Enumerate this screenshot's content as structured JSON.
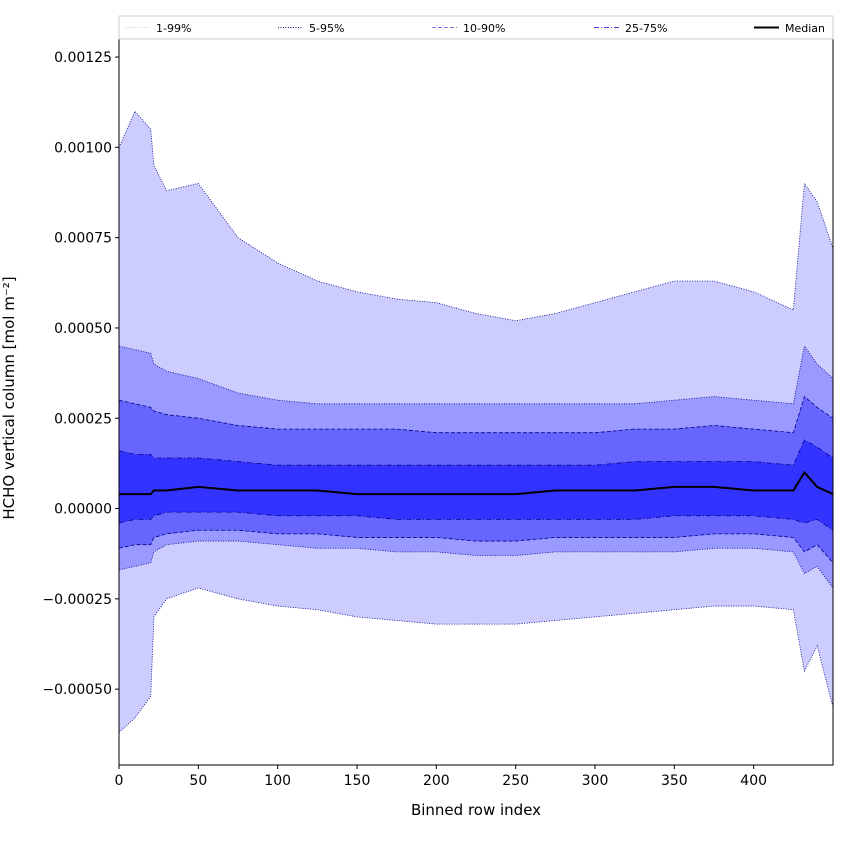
{
  "chart_data": {
    "type": "area",
    "title": "",
    "xlabel": "Binned row index",
    "ylabel": "HCHO vertical column [mol m⁻²]",
    "xlim": [
      0,
      450
    ],
    "ylim": [
      -0.00071,
      0.0013
    ],
    "x_ticks": [
      0,
      50,
      100,
      150,
      200,
      250,
      300,
      350,
      400
    ],
    "x_tick_labels": [
      "0",
      "50",
      "100",
      "150",
      "200",
      "250",
      "300",
      "350",
      "400"
    ],
    "y_ticks": [
      -0.0005,
      -0.00025,
      0.0,
      0.00025,
      0.0005,
      0.00075,
      0.001,
      0.00125
    ],
    "y_tick_labels": [
      "−0.00050",
      "−0.00025",
      "0.00000",
      "0.00025",
      "0.00050",
      "0.00075",
      "0.00100",
      "0.00125"
    ],
    "grid": false,
    "legend_position": "top",
    "colors": {
      "band_1_99": "#ccccff",
      "band_5_95": "#9999ff",
      "band_10_90": "#6666ff",
      "band_25_75": "#3333ff",
      "line": "#00008b",
      "median": "#000000"
    },
    "legend": [
      {
        "label": "1-99%",
        "style": "dotted",
        "color": "#ccccdd"
      },
      {
        "label": "5-95%",
        "style": "dotted",
        "color": "#00008b"
      },
      {
        "label": "10-90%",
        "style": "dashed",
        "color": "#7777ee"
      },
      {
        "label": "25-75%",
        "style": "dashdot",
        "color": "#4444ee"
      },
      {
        "label": "Median",
        "style": "solid",
        "color": "#000000"
      }
    ],
    "x": [
      0,
      10,
      20,
      22,
      30,
      50,
      75,
      100,
      125,
      150,
      175,
      200,
      225,
      250,
      275,
      300,
      325,
      350,
      375,
      400,
      425,
      432,
      440,
      450
    ],
    "series": [
      {
        "name": "1-99%",
        "lower": [
          -0.00062,
          -0.00058,
          -0.00052,
          -0.0003,
          -0.00025,
          -0.00022,
          -0.00025,
          -0.00027,
          -0.00028,
          -0.0003,
          -0.00031,
          -0.00032,
          -0.00032,
          -0.00032,
          -0.00031,
          -0.0003,
          -0.00029,
          -0.00028,
          -0.00027,
          -0.00027,
          -0.00028,
          -0.00045,
          -0.00038,
          -0.00055
        ],
        "upper": [
          0.001,
          0.0011,
          0.00105,
          0.00095,
          0.00088,
          0.0009,
          0.00075,
          0.00068,
          0.00063,
          0.0006,
          0.00058,
          0.00057,
          0.00054,
          0.00052,
          0.00054,
          0.00057,
          0.0006,
          0.00063,
          0.00063,
          0.0006,
          0.00055,
          0.0009,
          0.00085,
          0.00072
        ]
      },
      {
        "name": "5-95%",
        "lower": [
          -0.00017,
          -0.00016,
          -0.00015,
          -0.00012,
          -0.0001,
          -9e-05,
          -9e-05,
          -0.0001,
          -0.00011,
          -0.00011,
          -0.00012,
          -0.00012,
          -0.00013,
          -0.00013,
          -0.00012,
          -0.00012,
          -0.00012,
          -0.00012,
          -0.00011,
          -0.00011,
          -0.00012,
          -0.00018,
          -0.00016,
          -0.00022
        ],
        "upper": [
          0.00045,
          0.00044,
          0.00043,
          0.0004,
          0.00038,
          0.00036,
          0.00032,
          0.0003,
          0.00029,
          0.00029,
          0.00029,
          0.00029,
          0.00029,
          0.00029,
          0.00029,
          0.00029,
          0.00029,
          0.0003,
          0.00031,
          0.0003,
          0.00029,
          0.00045,
          0.0004,
          0.00036
        ]
      },
      {
        "name": "10-90%",
        "lower": [
          -0.00011,
          -0.0001,
          -0.0001,
          -8e-05,
          -7e-05,
          -6e-05,
          -6e-05,
          -7e-05,
          -7e-05,
          -8e-05,
          -8e-05,
          -8e-05,
          -9e-05,
          -9e-05,
          -8e-05,
          -8e-05,
          -8e-05,
          -8e-05,
          -7e-05,
          -7e-05,
          -8e-05,
          -0.00012,
          -0.0001,
          -0.00015
        ],
        "upper": [
          0.0003,
          0.00029,
          0.00028,
          0.00027,
          0.00026,
          0.00025,
          0.00023,
          0.00022,
          0.00022,
          0.00022,
          0.00022,
          0.00021,
          0.00021,
          0.00021,
          0.00021,
          0.00021,
          0.00022,
          0.00022,
          0.00023,
          0.00022,
          0.00021,
          0.00031,
          0.00028,
          0.00025
        ]
      },
      {
        "name": "25-75%",
        "lower": [
          -4e-05,
          -3e-05,
          -3e-05,
          -2e-05,
          -1e-05,
          -1e-05,
          -1e-05,
          -2e-05,
          -2e-05,
          -2e-05,
          -3e-05,
          -3e-05,
          -3e-05,
          -3e-05,
          -3e-05,
          -3e-05,
          -3e-05,
          -2e-05,
          -2e-05,
          -2e-05,
          -3e-05,
          -4e-05,
          -3e-05,
          -6e-05
        ],
        "upper": [
          0.00016,
          0.00015,
          0.00015,
          0.00014,
          0.00014,
          0.00014,
          0.00013,
          0.00012,
          0.00012,
          0.00012,
          0.00012,
          0.00012,
          0.00012,
          0.00012,
          0.00012,
          0.00012,
          0.00013,
          0.00013,
          0.00013,
          0.00013,
          0.00012,
          0.00019,
          0.00017,
          0.00014
        ]
      },
      {
        "name": "Median",
        "values": [
          4e-05,
          4e-05,
          4e-05,
          5e-05,
          5e-05,
          6e-05,
          5e-05,
          5e-05,
          5e-05,
          4e-05,
          4e-05,
          4e-05,
          4e-05,
          4e-05,
          5e-05,
          5e-05,
          5e-05,
          6e-05,
          6e-05,
          5e-05,
          5e-05,
          0.0001,
          6e-05,
          4e-05
        ]
      }
    ]
  }
}
